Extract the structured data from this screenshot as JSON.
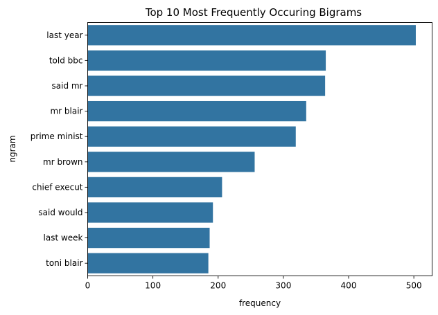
{
  "chart_data": {
    "type": "bar",
    "orientation": "horizontal",
    "title": "Top 10 Most Frequently Occuring Bigrams",
    "xlabel": "frequency",
    "ylabel": "ngram",
    "categories": [
      "last year",
      "told bbc",
      "said mr",
      "mr blair",
      "prime minist",
      "mr brown",
      "chief execut",
      "said would",
      "last week",
      "toni blair"
    ],
    "values": [
      503,
      365,
      364,
      335,
      319,
      256,
      206,
      192,
      187,
      185
    ],
    "xlim": [
      0,
      528
    ],
    "xticks": [
      0,
      100,
      200,
      300,
      400,
      500
    ],
    "grid": false,
    "bar_color": "#3274a1"
  }
}
